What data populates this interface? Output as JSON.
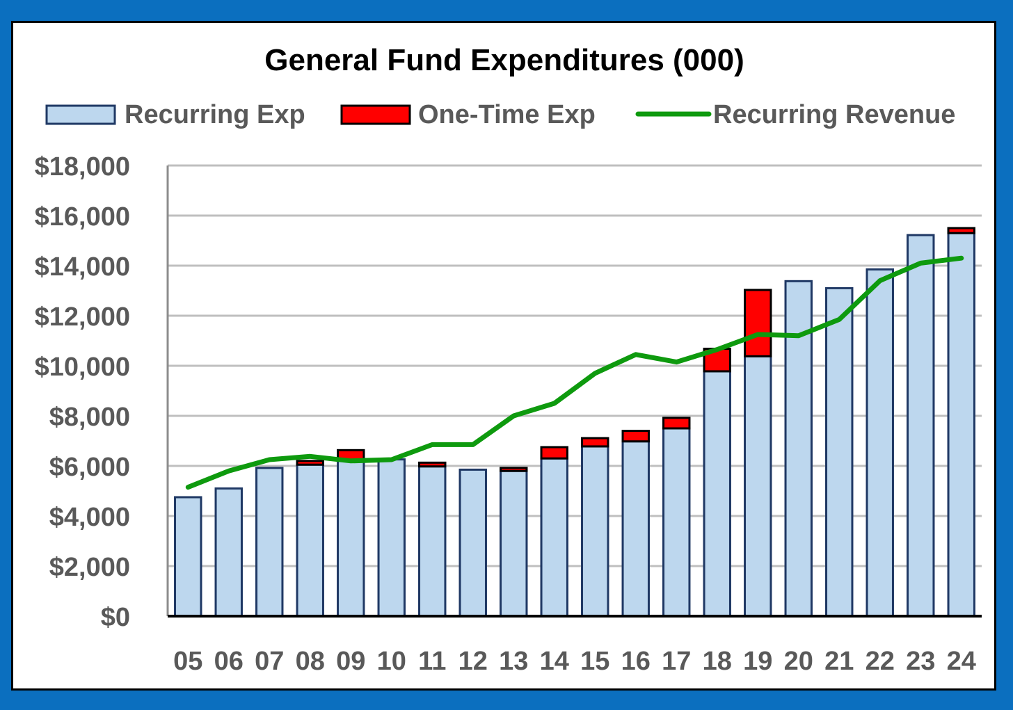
{
  "chart_data": {
    "type": "bar",
    "stacked": true,
    "title": "General Fund Expenditures (000)",
    "xlabel": "",
    "ylabel": "",
    "ylim": [
      0,
      18000
    ],
    "yticks": [
      "$0",
      "$2,000",
      "$4,000",
      "$6,000",
      "$8,000",
      "$10,000",
      "$12,000",
      "$14,000",
      "$16,000",
      "$18,000"
    ],
    "categories": [
      "05",
      "06",
      "07",
      "08",
      "09",
      "10",
      "11",
      "12",
      "13",
      "14",
      "15",
      "16",
      "17",
      "18",
      "19",
      "20",
      "21",
      "22",
      "23",
      "24"
    ],
    "grid": true,
    "legend_position": "top",
    "series": [
      {
        "name": "Recurring Exp",
        "type": "bar",
        "color": "#BDD7EE",
        "values": [
          4750,
          5100,
          5920,
          6050,
          6230,
          6260,
          5980,
          5850,
          5800,
          6300,
          6780,
          6980,
          7500,
          9780,
          10380,
          13380,
          13100,
          13850,
          15220,
          15300
        ]
      },
      {
        "name": "One-Time Exp",
        "type": "bar",
        "color": "#FF0000",
        "values": [
          0,
          0,
          0,
          150,
          400,
          0,
          150,
          0,
          120,
          450,
          330,
          420,
          420,
          900,
          2650,
          0,
          0,
          0,
          0,
          200
        ]
      },
      {
        "name": "Recurring Revenue",
        "type": "line",
        "color": "#0E9A0E",
        "values": [
          5150,
          5800,
          6250,
          6380,
          6200,
          6250,
          6850,
          6850,
          8000,
          8500,
          9700,
          10450,
          10150,
          10650,
          11250,
          11200,
          11850,
          13400,
          14100,
          14300
        ]
      }
    ]
  }
}
